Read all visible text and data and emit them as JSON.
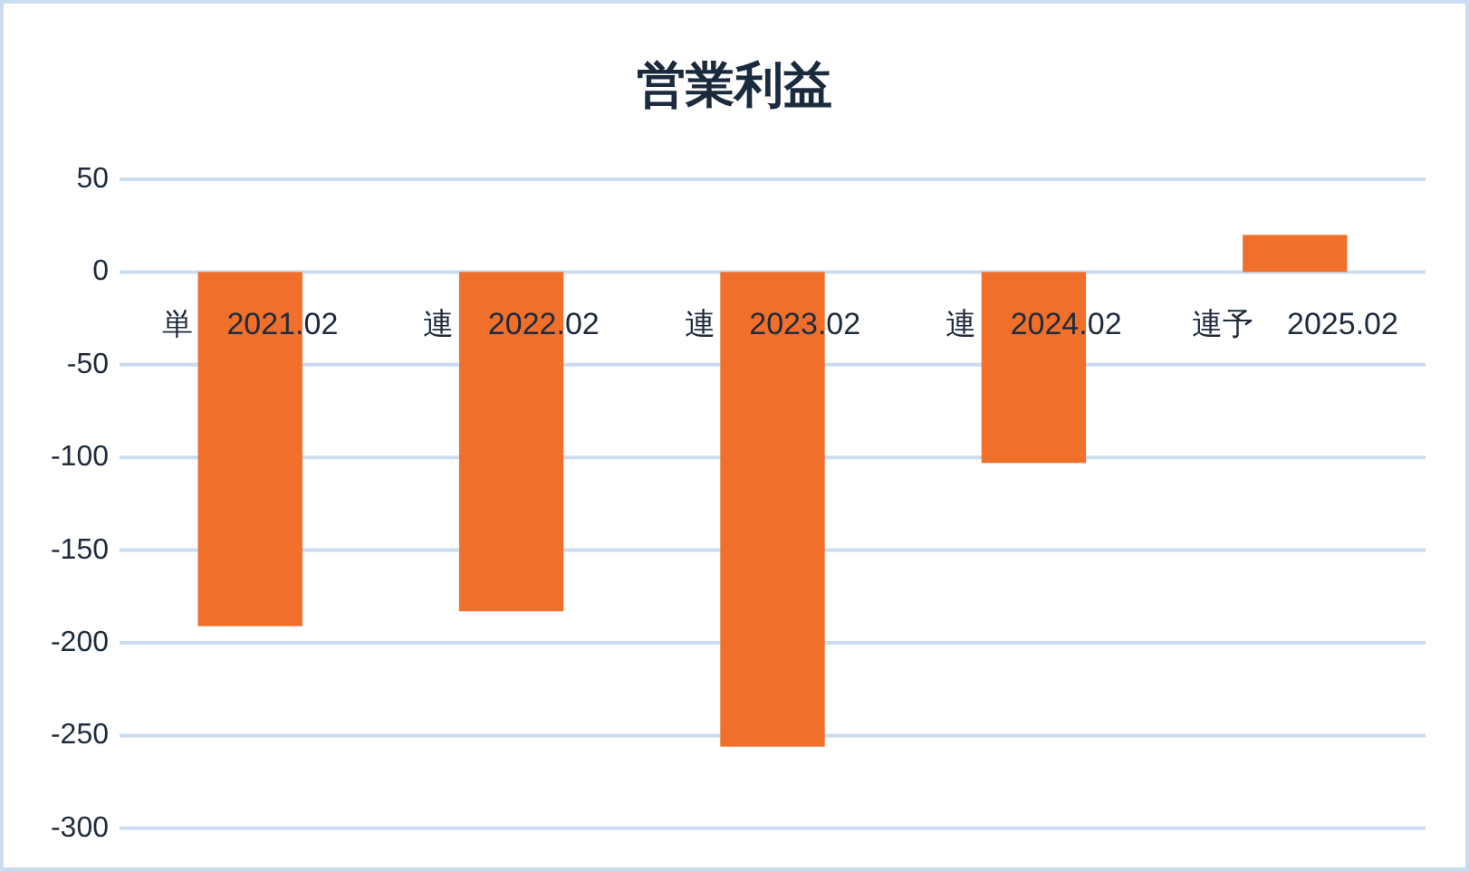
{
  "chart_data": {
    "type": "bar",
    "title": "営業利益",
    "categories": [
      "単 2021.02",
      "連 2022.02",
      "連 2023.02",
      "連 2024.02",
      "連予 2025.02"
    ],
    "values": [
      -191,
      -183,
      -256,
      -103,
      20
    ],
    "color": "#ef6f2b",
    "ylim": [
      -300,
      50
    ],
    "yticks": [
      -300,
      -250,
      -200,
      -150,
      -100,
      -50,
      0,
      50
    ],
    "grid": "y"
  }
}
